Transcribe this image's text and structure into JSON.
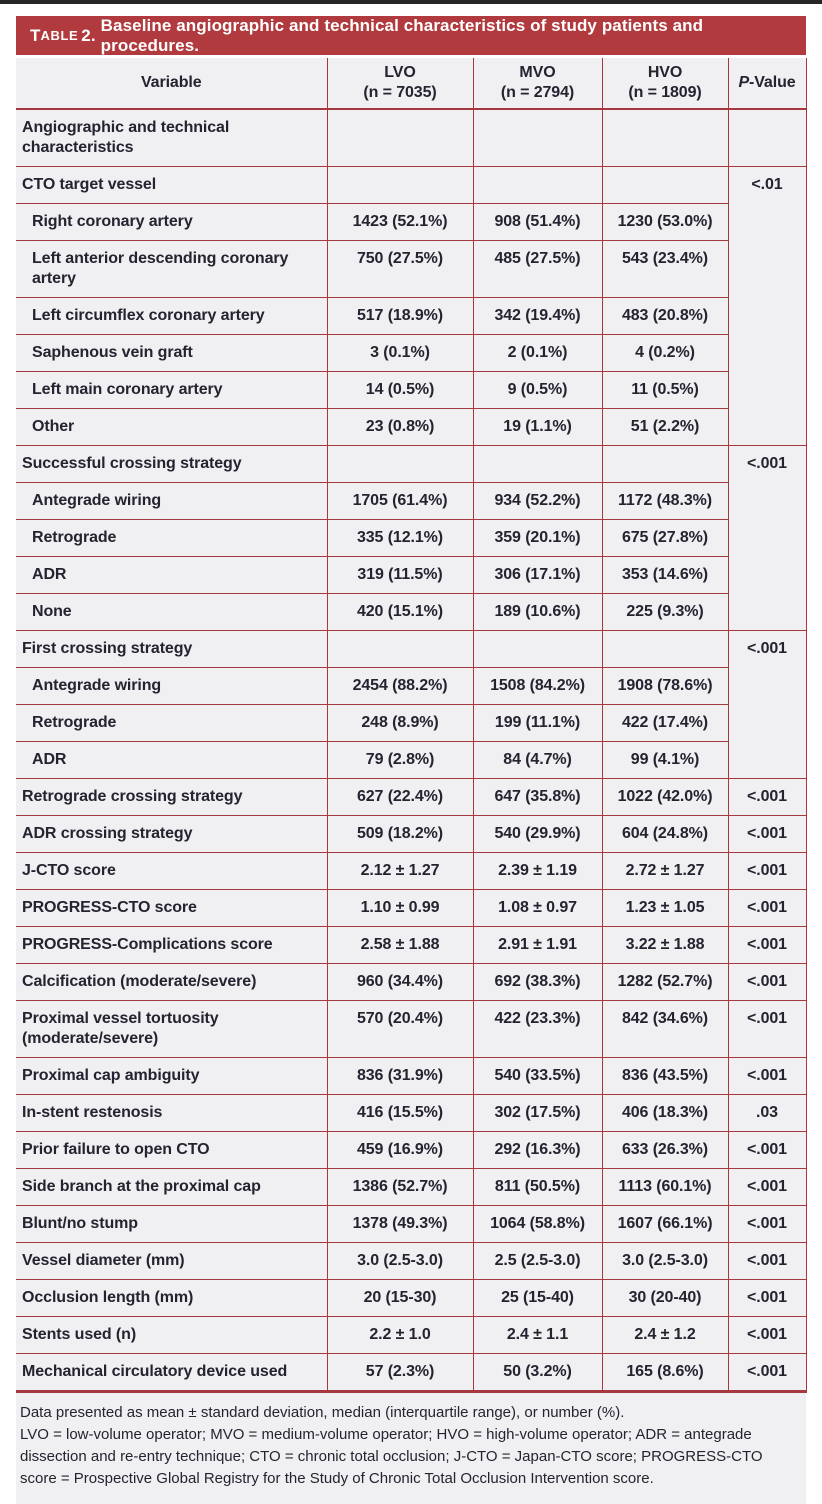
{
  "title": {
    "prefix_t": "T",
    "prefix_able": "ABLE",
    "prefix_num": "2.",
    "text": "Baseline angiographic and technical characteristics of study patients and procedures."
  },
  "header": {
    "variable": "Variable",
    "groups": [
      {
        "name": "LVO",
        "n": "(n = 7035)"
      },
      {
        "name": "MVO",
        "n": "(n = 2794)"
      },
      {
        "name": "HVO",
        "n": "(n = 1809)"
      }
    ],
    "p_italic": "P",
    "p_rest": "-Value"
  },
  "rows": [
    {
      "label": "Angiographic and technical characteristics",
      "indent": false,
      "lvo": "",
      "mvo": "",
      "hvo": "",
      "p": ""
    },
    {
      "label": "CTO target vessel",
      "indent": false,
      "lvo": "",
      "mvo": "",
      "hvo": "",
      "p": "<.01",
      "p_span": 7
    },
    {
      "label": "Right coronary artery",
      "indent": true,
      "lvo": "1423 (52.1%)",
      "mvo": "908 (51.4%)",
      "hvo": "1230 (53.0%)"
    },
    {
      "label": "Left anterior descending coronary artery",
      "indent": true,
      "lvo": "750 (27.5%)",
      "mvo": "485 (27.5%)",
      "hvo": "543 (23.4%)"
    },
    {
      "label": "Left circumflex coronary artery",
      "indent": true,
      "lvo": "517 (18.9%)",
      "mvo": "342 (19.4%)",
      "hvo": "483 (20.8%)"
    },
    {
      "label": "Saphenous vein graft",
      "indent": true,
      "lvo": "3 (0.1%)",
      "mvo": "2 (0.1%)",
      "hvo": "4 (0.2%)"
    },
    {
      "label": "Left main coronary artery",
      "indent": true,
      "lvo": "14 (0.5%)",
      "mvo": "9 (0.5%)",
      "hvo": "11 (0.5%)"
    },
    {
      "label": "Other",
      "indent": true,
      "lvo": "23 (0.8%)",
      "mvo": "19 (1.1%)",
      "hvo": "51 (2.2%)"
    },
    {
      "label": "Successful crossing strategy",
      "indent": false,
      "lvo": "",
      "mvo": "",
      "hvo": "",
      "p": "<.001",
      "p_span": 5
    },
    {
      "label": "Antegrade wiring",
      "indent": true,
      "lvo": "1705 (61.4%)",
      "mvo": "934 (52.2%)",
      "hvo": "1172 (48.3%)"
    },
    {
      "label": "Retrograde",
      "indent": true,
      "lvo": "335 (12.1%)",
      "mvo": "359 (20.1%)",
      "hvo": "675 (27.8%)"
    },
    {
      "label": "ADR",
      "indent": true,
      "lvo": "319 (11.5%)",
      "mvo": "306 (17.1%)",
      "hvo": "353 (14.6%)"
    },
    {
      "label": "None",
      "indent": true,
      "lvo": "420 (15.1%)",
      "mvo": "189 (10.6%)",
      "hvo": "225 (9.3%)"
    },
    {
      "label": "First crossing strategy",
      "indent": false,
      "lvo": "",
      "mvo": "",
      "hvo": "",
      "p": "<.001",
      "p_span": 4
    },
    {
      "label": "Antegrade wiring",
      "indent": true,
      "lvo": "2454 (88.2%)",
      "mvo": "1508 (84.2%)",
      "hvo": "1908 (78.6%)"
    },
    {
      "label": "Retrograde",
      "indent": true,
      "lvo": "248 (8.9%)",
      "mvo": "199 (11.1%)",
      "hvo": "422 (17.4%)"
    },
    {
      "label": "ADR",
      "indent": true,
      "lvo": "79 (2.8%)",
      "mvo": "84 (4.7%)",
      "hvo": "99 (4.1%)"
    },
    {
      "label": "Retrograde crossing strategy",
      "indent": false,
      "lvo": "627 (22.4%)",
      "mvo": "647 (35.8%)",
      "hvo": "1022 (42.0%)",
      "p": "<.001"
    },
    {
      "label": "ADR crossing strategy",
      "indent": false,
      "lvo": "509 (18.2%)",
      "mvo": "540 (29.9%)",
      "hvo": "604 (24.8%)",
      "p": "<.001"
    },
    {
      "label": "J-CTO score",
      "indent": false,
      "lvo": "2.12 ± 1.27",
      "mvo": "2.39 ± 1.19",
      "hvo": "2.72 ± 1.27",
      "p": "<.001"
    },
    {
      "label": "PROGRESS-CTO score",
      "indent": false,
      "lvo": "1.10 ± 0.99",
      "mvo": "1.08 ± 0.97",
      "hvo": "1.23 ± 1.05",
      "p": "<.001"
    },
    {
      "label": "PROGRESS-Complications score",
      "indent": false,
      "lvo": "2.58 ± 1.88",
      "mvo": "2.91 ± 1.91",
      "hvo": "3.22 ± 1.88",
      "p": "<.001"
    },
    {
      "label": "Calcification (moderate/severe)",
      "indent": false,
      "lvo": "960 (34.4%)",
      "mvo": "692 (38.3%)",
      "hvo": "1282 (52.7%)",
      "p": "<.001"
    },
    {
      "label": "Proximal vessel tortuosity (moderate/severe)",
      "indent": false,
      "lvo": "570 (20.4%)",
      "mvo": "422 (23.3%)",
      "hvo": "842 (34.6%)",
      "p": "<.001"
    },
    {
      "label": "Proximal cap ambiguity",
      "indent": false,
      "lvo": "836 (31.9%)",
      "mvo": "540 (33.5%)",
      "hvo": "836 (43.5%)",
      "p": "<.001"
    },
    {
      "label": "In-stent restenosis",
      "indent": false,
      "lvo": "416 (15.5%)",
      "mvo": "302 (17.5%)",
      "hvo": "406 (18.3%)",
      "p": ".03"
    },
    {
      "label": "Prior failure to open CTO",
      "indent": false,
      "lvo": "459 (16.9%)",
      "mvo": "292 (16.3%)",
      "hvo": "633 (26.3%)",
      "p": "<.001"
    },
    {
      "label": "Side branch at the proximal cap",
      "indent": false,
      "lvo": "1386 (52.7%)",
      "mvo": "811 (50.5%)",
      "hvo": "1113 (60.1%)",
      "p": "<.001"
    },
    {
      "label": "Blunt/no stump",
      "indent": false,
      "lvo": "1378 (49.3%)",
      "mvo": "1064 (58.8%)",
      "hvo": "1607 (66.1%)",
      "p": "<.001"
    },
    {
      "label": "Vessel diameter (mm)",
      "indent": false,
      "lvo": "3.0 (2.5-3.0)",
      "mvo": "2.5 (2.5-3.0)",
      "hvo": "3.0 (2.5-3.0)",
      "p": "<.001"
    },
    {
      "label": "Occlusion length (mm)",
      "indent": false,
      "lvo": "20 (15-30)",
      "mvo": "25 (15-40)",
      "hvo": "30 (20-40)",
      "p": "<.001"
    },
    {
      "label": "Stents used (n)",
      "indent": false,
      "lvo": "2.2 ± 1.0",
      "mvo": "2.4 ± 1.1",
      "hvo": "2.4 ± 1.2",
      "p": "<.001"
    },
    {
      "label": "Mechanical circulatory device used",
      "indent": false,
      "lvo": "57 (2.3%)",
      "mvo": "50 (3.2%)",
      "hvo": "165 (8.6%)",
      "p": "<.001"
    }
  ],
  "footnotes": {
    "line1": "Data presented as mean ± standard deviation, median (interquartile range), or number (%).",
    "line2": "LVO = low-volume operator; MVO = medium-volume operator; HVO = high-volume operator; ADR = antegrade dissection and re-entry technique; CTO = chronic total occlusion; J-CTO = Japan-CTO score; PROGRESS-CTO score = Prospective Global Registry for the Study of Chronic Total Occlusion Intervention score."
  },
  "colors": {
    "banner": "#b03a3d",
    "line": "#a43a3f",
    "bg": "#f0eff1",
    "ink": "#232430",
    "top_bar": "#262626"
  }
}
